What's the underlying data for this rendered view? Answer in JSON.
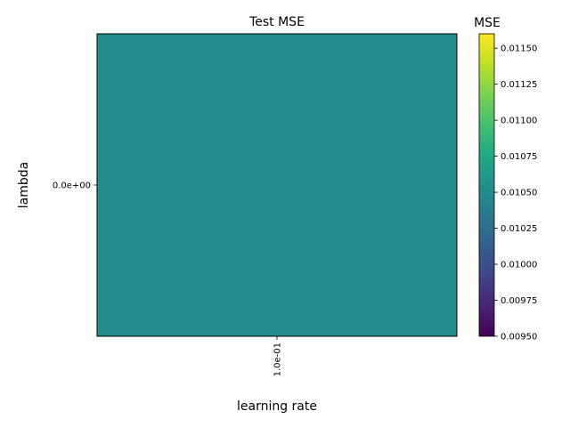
{
  "chart_data": {
    "type": "heatmap",
    "title": "Test MSE",
    "xlabel": "learning rate",
    "ylabel": "lambda",
    "x_categories": [
      "1.0e-01"
    ],
    "y_categories": [
      "0.0e+00"
    ],
    "values": [
      [
        0.0105
      ]
    ],
    "colorbar": {
      "label": "MSE",
      "colormap": "viridis",
      "range": [
        0.0095,
        0.0116
      ],
      "ticks": [
        "0.00950",
        "0.00975",
        "0.01000",
        "0.01025",
        "0.01050",
        "0.01075",
        "0.01100",
        "0.01125",
        "0.01150"
      ],
      "tick_values": [
        0.0095,
        0.00975,
        0.01,
        0.01025,
        0.0105,
        0.01075,
        0.011,
        0.01125,
        0.0115
      ]
    },
    "grid": false
  }
}
